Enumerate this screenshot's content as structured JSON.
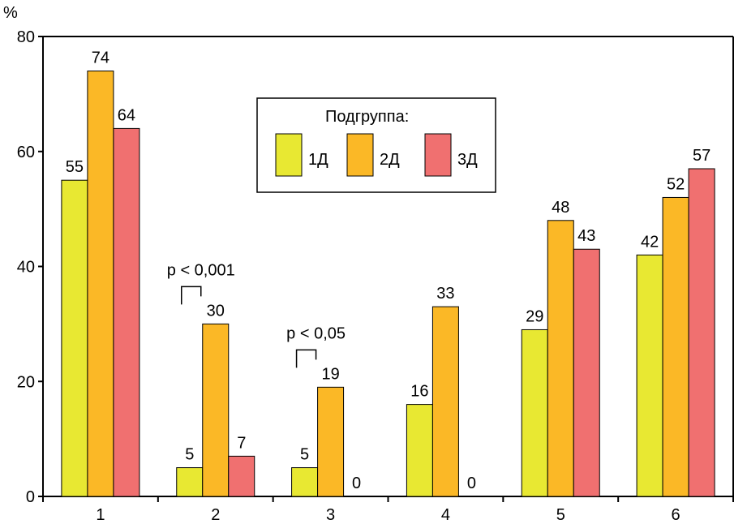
{
  "chart_data": {
    "type": "bar",
    "title": "",
    "xlabel": "",
    "ylabel": "%",
    "ylim": [
      0,
      80
    ],
    "yticks": [
      0,
      20,
      40,
      60,
      80
    ],
    "categories": [
      "1",
      "2",
      "3",
      "4",
      "5",
      "6"
    ],
    "series": [
      {
        "name": "1Д",
        "color": "#e8e832",
        "values": [
          55,
          5,
          5,
          16,
          29,
          42
        ]
      },
      {
        "name": "2Д",
        "color": "#fbb826",
        "values": [
          74,
          30,
          19,
          33,
          48,
          52
        ]
      },
      {
        "name": "3Д",
        "color": "#f07070",
        "values": [
          64,
          7,
          0,
          0,
          43,
          57
        ]
      }
    ],
    "legend": {
      "title": "Подгруппа:",
      "placement": "top-center"
    },
    "annotations": [
      {
        "text": "p < 0,001",
        "category": "2",
        "series_from": 0,
        "series_to": 1
      },
      {
        "text": "p < 0,05",
        "category": "3",
        "series_from": 0,
        "series_to": 1
      }
    ],
    "grid": false
  }
}
